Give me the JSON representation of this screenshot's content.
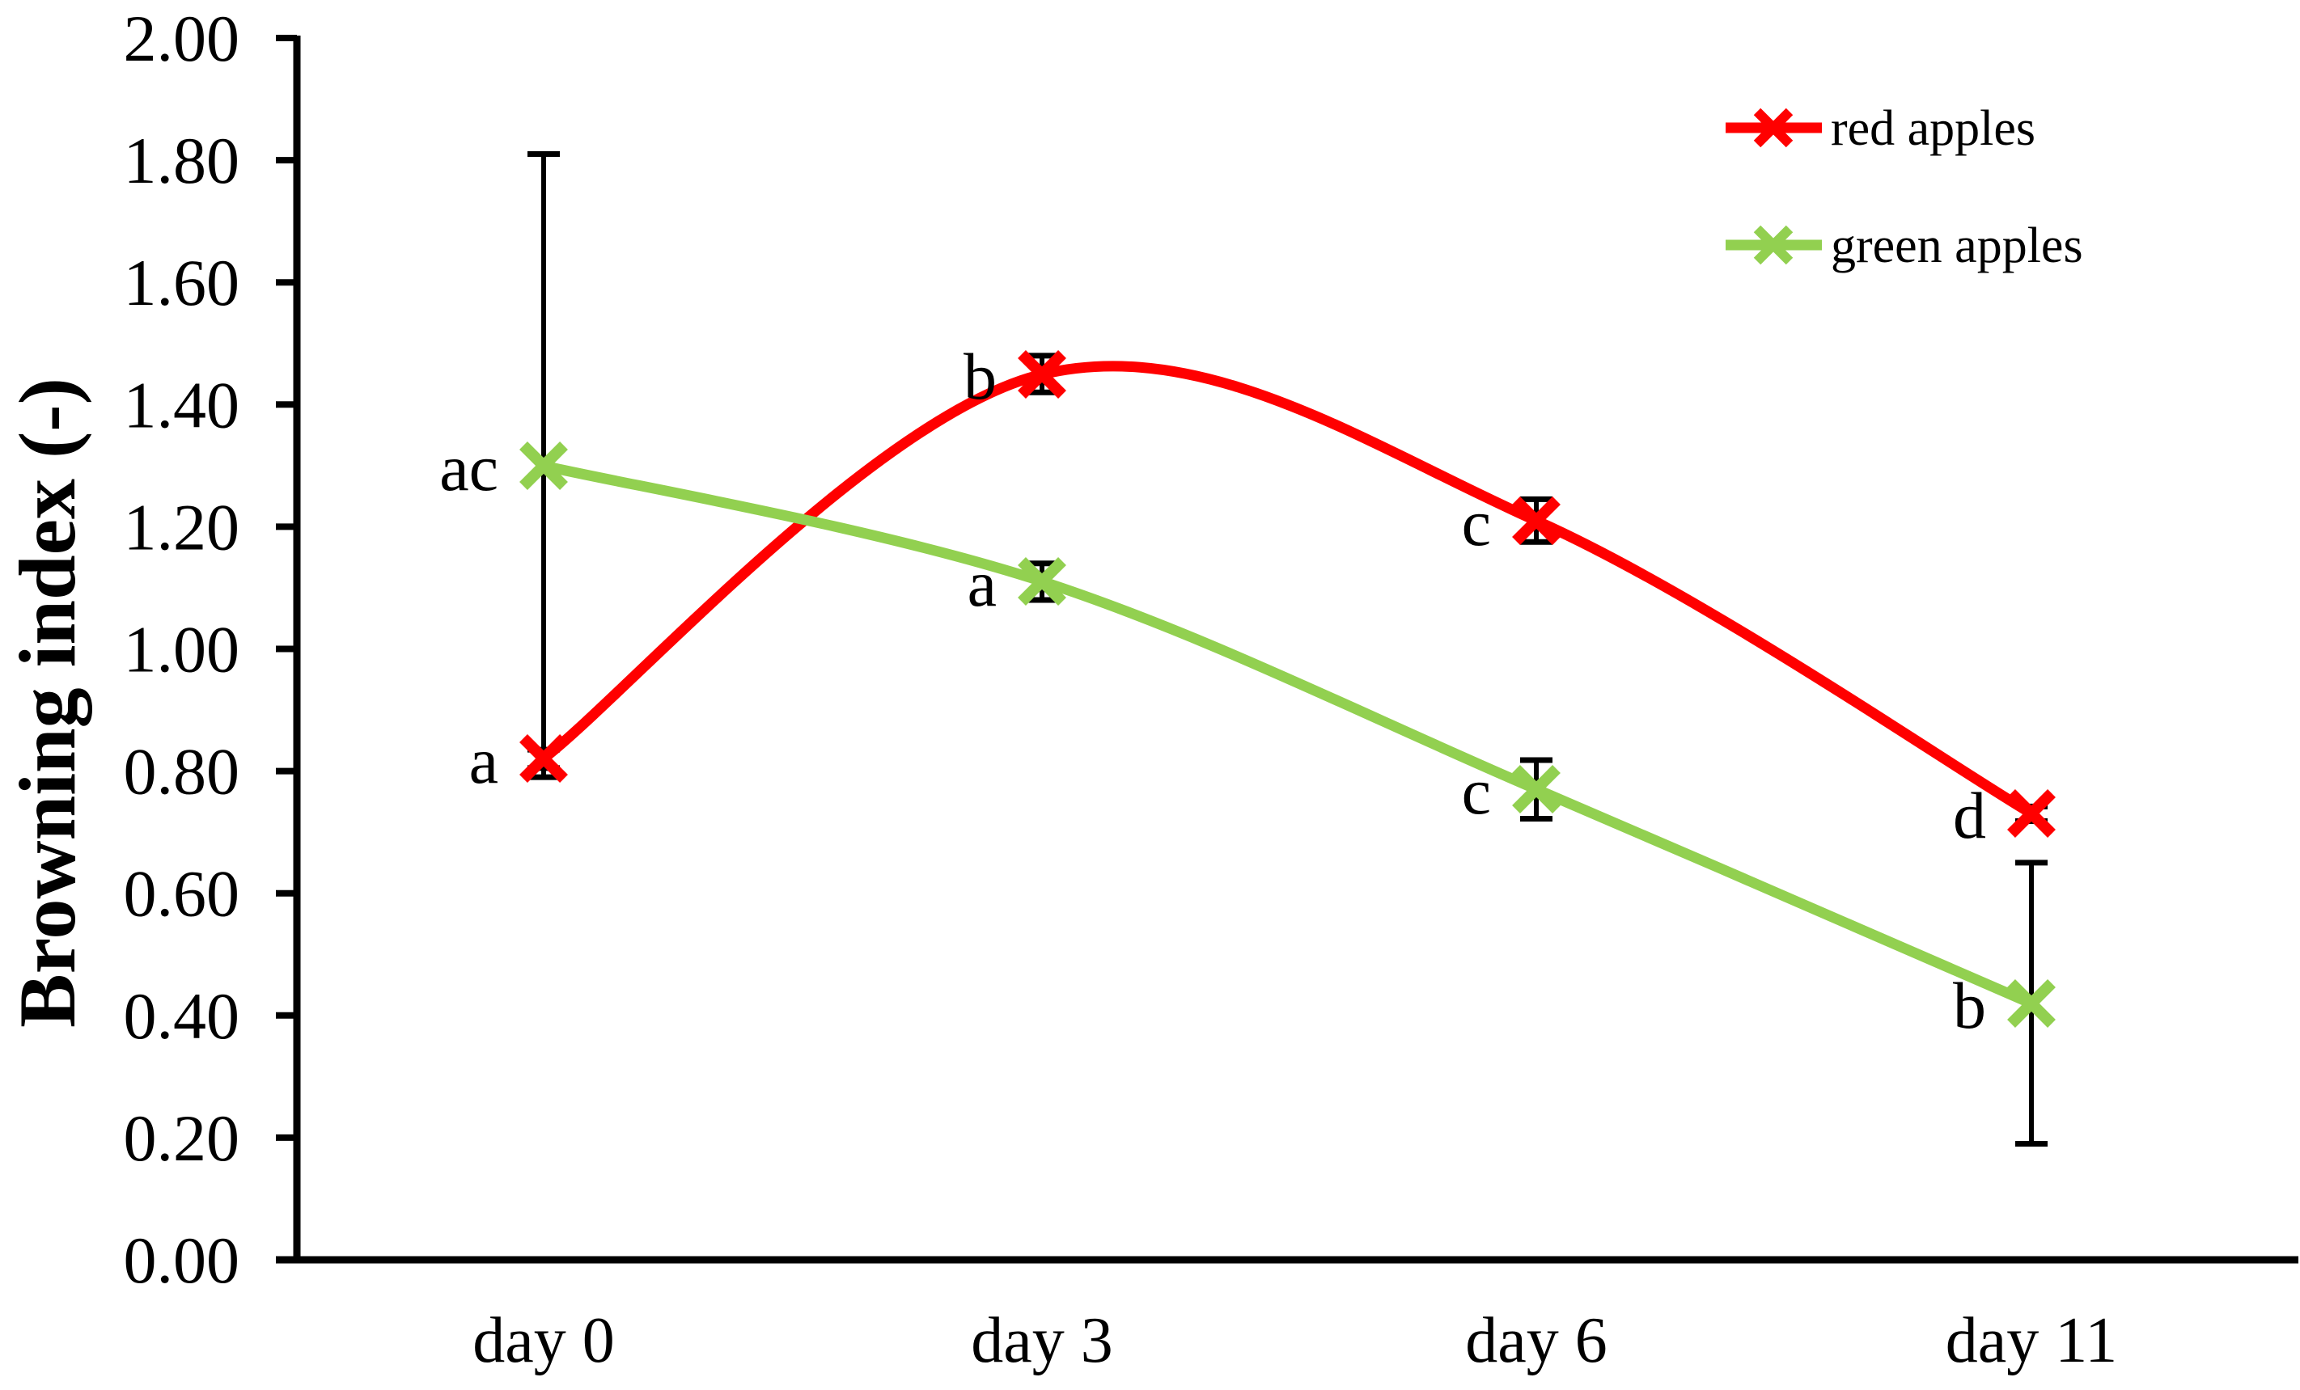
{
  "chart_data": {
    "type": "line",
    "title": "",
    "xlabel": "",
    "ylabel": "Browning index (-)",
    "categories": [
      "day 0",
      "day 3",
      "day 6",
      "day 11"
    ],
    "ylim": [
      0.0,
      2.0
    ],
    "ytick_step": 0.2,
    "ytick_labels": [
      "0.00",
      "0.20",
      "0.40",
      "0.60",
      "0.80",
      "1.00",
      "1.20",
      "1.40",
      "1.60",
      "1.80",
      "2.00"
    ],
    "grid": false,
    "legend_position": "top-right",
    "marker": "x",
    "line_style": "smooth",
    "error_bar_color": "#000000",
    "axis_color": "#000000",
    "series": [
      {
        "name": "red apples",
        "slug": "red-apples",
        "color": "#ff0000",
        "values": [
          0.82,
          1.45,
          1.21,
          0.73
        ],
        "error_bars": [
          0.015,
          0.03,
          0.035,
          0.012
        ],
        "point_labels": [
          "a",
          "b",
          "c",
          "d"
        ]
      },
      {
        "name": "green apples",
        "slug": "green-apples",
        "color": "#92d050",
        "values": [
          1.3,
          1.11,
          0.77,
          0.42
        ],
        "error_bars": [
          0.51,
          0.03,
          0.048,
          0.23
        ],
        "point_labels": [
          "ac",
          "a",
          "c",
          "b"
        ]
      }
    ]
  }
}
